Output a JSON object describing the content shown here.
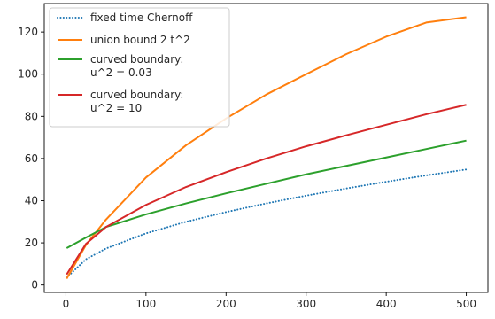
{
  "chart_data": {
    "type": "line",
    "title": "",
    "xlabel": "",
    "ylabel": "",
    "xlim": [
      -27,
      527
    ],
    "ylim": [
      -3.5,
      133.5
    ],
    "x_ticks": [
      0,
      100,
      200,
      300,
      400,
      500
    ],
    "y_ticks": [
      0,
      20,
      40,
      60,
      80,
      100,
      120
    ],
    "grid": false,
    "legend_position": "top-left",
    "x": [
      1,
      25,
      50,
      100,
      150,
      200,
      250,
      300,
      350,
      400,
      450,
      500
    ],
    "series": [
      {
        "name": "fixed time Chernoff",
        "style": "dotted",
        "color": "#1f77b4",
        "label_lines": [
          "fixed time Chernoff"
        ],
        "values": [
          3.5,
          12.2,
          17.3,
          24.5,
          30.0,
          34.6,
          38.7,
          42.4,
          45.8,
          49.0,
          52.0,
          54.8
        ]
      },
      {
        "name": "union bound 2 t^2",
        "style": "solid",
        "color": "#ff7f0e",
        "label_lines": [
          "union bound 2 t^2"
        ],
        "values": [
          3.0,
          19.0,
          31.0,
          51.0,
          66.3,
          79.0,
          90.3,
          100.0,
          109.5,
          117.8,
          124.5,
          127.0
        ]
      },
      {
        "name": "curved boundary: u^2 = 0.03",
        "style": "solid",
        "color": "#2ca02c",
        "label_lines": [
          "curved boundary:",
          "u^2 = 0.03"
        ],
        "values": [
          17.5,
          22.5,
          27.5,
          33.5,
          38.7,
          43.5,
          48.0,
          52.5,
          56.5,
          60.5,
          64.5,
          68.5
        ]
      },
      {
        "name": "curved boundary: u^2 = 10",
        "style": "solid",
        "color": "#d62728",
        "label_lines": [
          "curved boundary:",
          "u^2 = 10"
        ],
        "values": [
          5.0,
          19.5,
          27.5,
          38.0,
          46.5,
          53.5,
          60.0,
          65.8,
          71.0,
          76.0,
          81.0,
          85.5
        ]
      }
    ]
  }
}
